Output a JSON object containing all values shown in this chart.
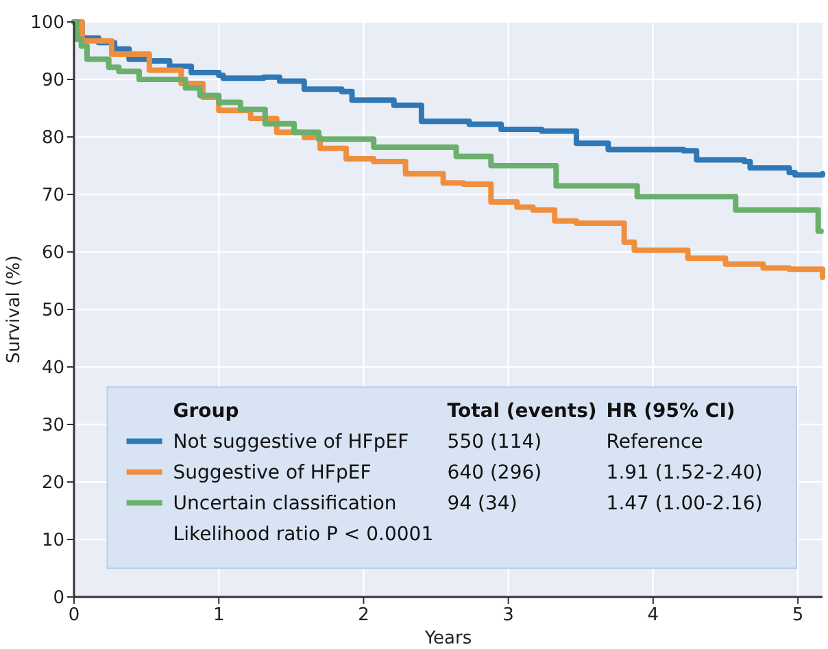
{
  "chart_data": {
    "type": "step",
    "xlabel": "Years",
    "ylabel": "Survival (%)",
    "xlim": [
      0,
      5.17
    ],
    "ylim": [
      0,
      100
    ],
    "xticks": [
      0,
      1,
      2,
      3,
      4,
      5
    ],
    "yticks": [
      0,
      10,
      20,
      30,
      40,
      50,
      60,
      70,
      80,
      90,
      100
    ],
    "grid": true,
    "legend": "bottom",
    "legend_title": "Group",
    "series": [
      {
        "name": "Not suggestive of HFpEF",
        "color": "#2f77b5",
        "x": [
          0,
          0.055,
          0.17,
          0.28,
          0.38,
          0.52,
          0.66,
          0.81,
          1.0,
          1.03,
          1.31,
          1.42,
          1.59,
          1.85,
          1.92,
          2.21,
          2.4,
          2.73,
          2.95,
          3.23,
          3.47,
          3.69,
          4.21,
          4.3,
          4.63,
          4.67,
          4.94,
          4.98,
          5.17
        ],
        "values": [
          100,
          97.2,
          96.4,
          95.3,
          93.5,
          93.2,
          92.3,
          91.2,
          90.7,
          90.2,
          90.4,
          89.7,
          88.3,
          87.9,
          86.4,
          85.5,
          82.7,
          82.2,
          81.3,
          81.0,
          78.9,
          77.8,
          77.6,
          76.0,
          75.7,
          74.6,
          73.8,
          73.4,
          73.6
        ]
      },
      {
        "name": "Suggestive of HFpEF",
        "color": "#ef8f3d",
        "x": [
          0,
          0.055,
          0.26,
          0.52,
          0.74,
          0.89,
          1.0,
          1.22,
          1.4,
          1.59,
          1.7,
          1.88,
          2.07,
          2.29,
          2.44,
          2.55,
          2.69,
          2.88,
          3.06,
          3.17,
          3.32,
          3.47,
          3.8,
          3.87,
          4.06,
          4.24,
          4.5,
          4.76,
          4.94,
          5.17
        ],
        "values": [
          100,
          96.7,
          94.4,
          91.6,
          89.3,
          86.9,
          84.6,
          83.2,
          80.8,
          79.9,
          78.0,
          76.2,
          75.7,
          73.6,
          73.6,
          72.0,
          71.8,
          68.7,
          67.8,
          67.3,
          65.4,
          65.0,
          61.7,
          60.3,
          60.3,
          58.9,
          57.9,
          57.2,
          57.0,
          55.6
        ]
      },
      {
        "name": "Uncertain classification",
        "color": "#6aaf6c",
        "x": [
          0,
          0.02,
          0.05,
          0.09,
          0.24,
          0.31,
          0.45,
          0.77,
          0.87,
          1.0,
          1.15,
          1.32,
          1.52,
          1.69,
          2.07,
          2.64,
          2.88,
          3.33,
          3.89,
          4.57,
          5.14,
          5.16
        ],
        "values": [
          100,
          97,
          95.8,
          93.5,
          92.1,
          91.4,
          90.0,
          88.5,
          87.2,
          86.0,
          84.8,
          82.3,
          80.8,
          79.6,
          78.2,
          76.6,
          75.0,
          71.5,
          69.6,
          67.3,
          63.6,
          63.6
        ]
      }
    ],
    "annotations": [
      "Total (events)",
      "HR (95% CI)",
      "550 (114)",
      "Reference",
      "640 (296)",
      "1.91 (1.52-2.40)",
      "94 (34)",
      "1.47 (1.00-2.16)",
      "Likelihood ratio P < 0.0001"
    ]
  }
}
